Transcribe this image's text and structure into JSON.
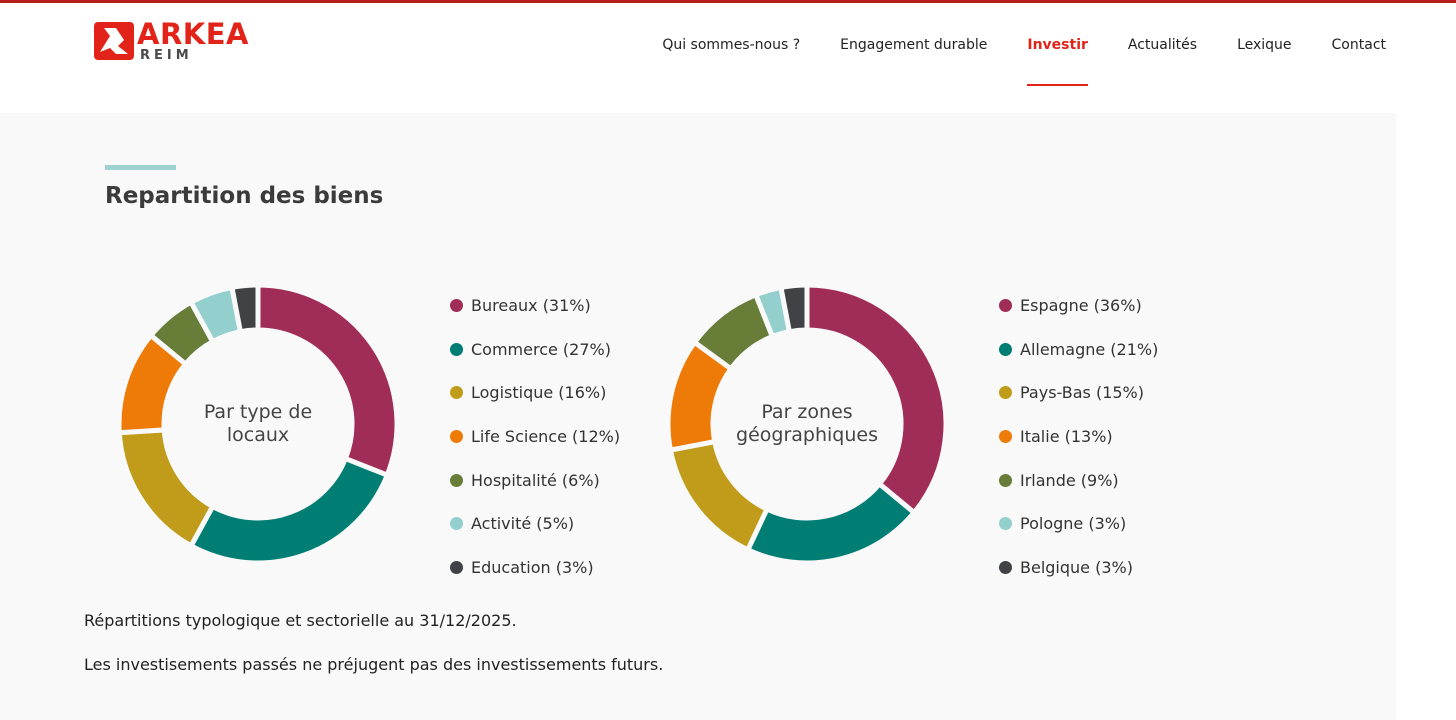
{
  "brand": {
    "name": "ARKEA",
    "sub": "REIM",
    "color": "#e2231a"
  },
  "nav": {
    "items": [
      {
        "label": "Qui sommes-nous ?",
        "active": false
      },
      {
        "label": "Engagement durable",
        "active": false
      },
      {
        "label": "Investir",
        "active": true
      },
      {
        "label": "Actualités",
        "active": false
      },
      {
        "label": "Lexique",
        "active": false
      },
      {
        "label": "Contact",
        "active": false
      }
    ]
  },
  "section": {
    "title": "Repartition des biens"
  },
  "chart_data": [
    {
      "type": "pie",
      "style": "donut",
      "center_label": "Par type de locaux",
      "categories": [
        "Bureaux",
        "Commerce",
        "Logistique",
        "Life Science",
        "Hospitalité",
        "Activité",
        "Education"
      ],
      "values": [
        31,
        27,
        16,
        12,
        6,
        5,
        3
      ],
      "legend_labels": [
        "Bureaux (31%)",
        "Commerce (27%)",
        "Logistique (16%)",
        "Life Science (12%)",
        "Hospitalité (6%)",
        "Activité (5%)",
        "Education (3%)"
      ],
      "colors": [
        "#a02c58",
        "#007e73",
        "#c09c1a",
        "#ee7b07",
        "#687d38",
        "#92cfcd",
        "#404246"
      ],
      "legend_placement": "right"
    },
    {
      "type": "pie",
      "style": "donut",
      "center_label": "Par zones géographiques",
      "categories": [
        "Espagne",
        "Allemagne",
        "Pays-Bas",
        "Italie",
        "Irlande",
        "Pologne",
        "Belgique"
      ],
      "values": [
        36,
        21,
        15,
        13,
        9,
        3,
        3
      ],
      "legend_labels": [
        "Espagne (36%)",
        "Allemagne (21%)",
        "Pays-Bas (15%)",
        "Italie (13%)",
        "Irlande (9%)",
        "Pologne (3%)",
        "Belgique (3%)"
      ],
      "colors": [
        "#a02c58",
        "#007e73",
        "#c09c1a",
        "#ee7b07",
        "#687d38",
        "#92cfcd",
        "#404246"
      ],
      "legend_placement": "right"
    }
  ],
  "notes": [
    "Répartitions typologique et sectorielle au 31/12/2025.",
    "Les investisements passés ne préjugent pas des investissements futurs."
  ]
}
